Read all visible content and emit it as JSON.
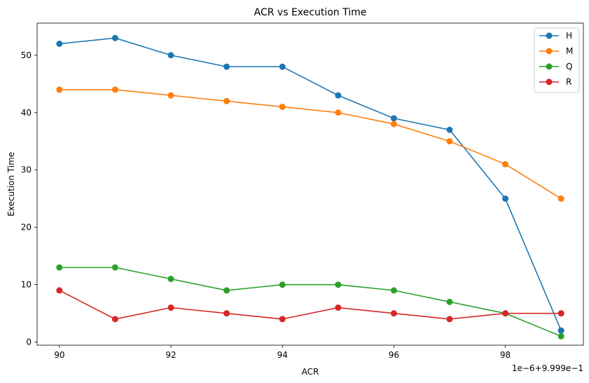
{
  "chart_data": {
    "type": "line",
    "title": "ACR vs Execution Time",
    "xlabel": "ACR",
    "ylabel": "Execution Time",
    "x_offset_text": "1e−6+9.999e−1",
    "x": [
      90,
      91,
      92,
      93,
      94,
      95,
      96,
      97,
      98,
      99
    ],
    "xticks": [
      "90",
      "92",
      "94",
      "96",
      "98"
    ],
    "yticks": [
      "0",
      "10",
      "20",
      "30",
      "40",
      "50"
    ],
    "xlim": [
      89.6,
      99.4
    ],
    "ylim": [
      -0.55,
      55.6
    ],
    "grid": false,
    "legend_position": "top-right",
    "series": [
      {
        "name": "H",
        "color": "#1f77b4",
        "values": [
          52,
          53,
          50,
          48,
          48,
          43,
          39,
          37,
          25,
          2
        ]
      },
      {
        "name": "M",
        "color": "#ff7f0e",
        "values": [
          44,
          44,
          43,
          42,
          41,
          40,
          38,
          35,
          31,
          25
        ]
      },
      {
        "name": "Q",
        "color": "#2ca02c",
        "values": [
          13,
          13,
          11,
          9,
          10,
          10,
          9,
          7,
          5,
          1
        ]
      },
      {
        "name": "R",
        "color": "#d62728",
        "values": [
          9,
          4,
          6,
          5,
          4,
          6,
          5,
          4,
          5,
          5
        ]
      }
    ]
  }
}
